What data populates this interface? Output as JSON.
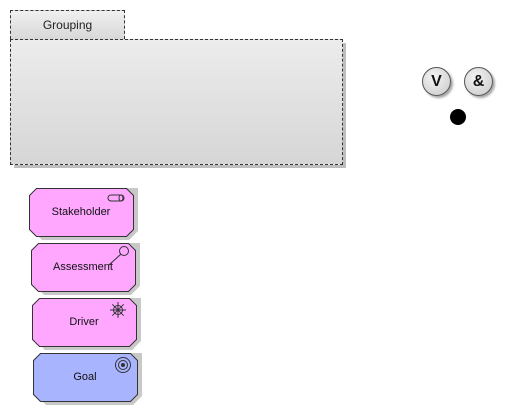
{
  "grouping": {
    "label": "Grouping"
  },
  "junctions": {
    "or_label": "V",
    "and_label": "&"
  },
  "elements": [
    {
      "label": "Stakeholder",
      "icon": "stakeholder-cylinder-icon",
      "fill": "#ffa6ff"
    },
    {
      "label": "Assessment",
      "icon": "magnifier-icon",
      "fill": "#ffa6ff"
    },
    {
      "label": "Driver",
      "icon": "ship-wheel-icon",
      "fill": "#ffa6ff"
    },
    {
      "label": "Goal",
      "icon": "target-icon",
      "fill": "#a9b4ff"
    }
  ],
  "colors": {
    "motivation_fill": "#ffa6ff",
    "goal_fill": "#a9b4ff",
    "grouping_fill": "#e0e0e0"
  }
}
